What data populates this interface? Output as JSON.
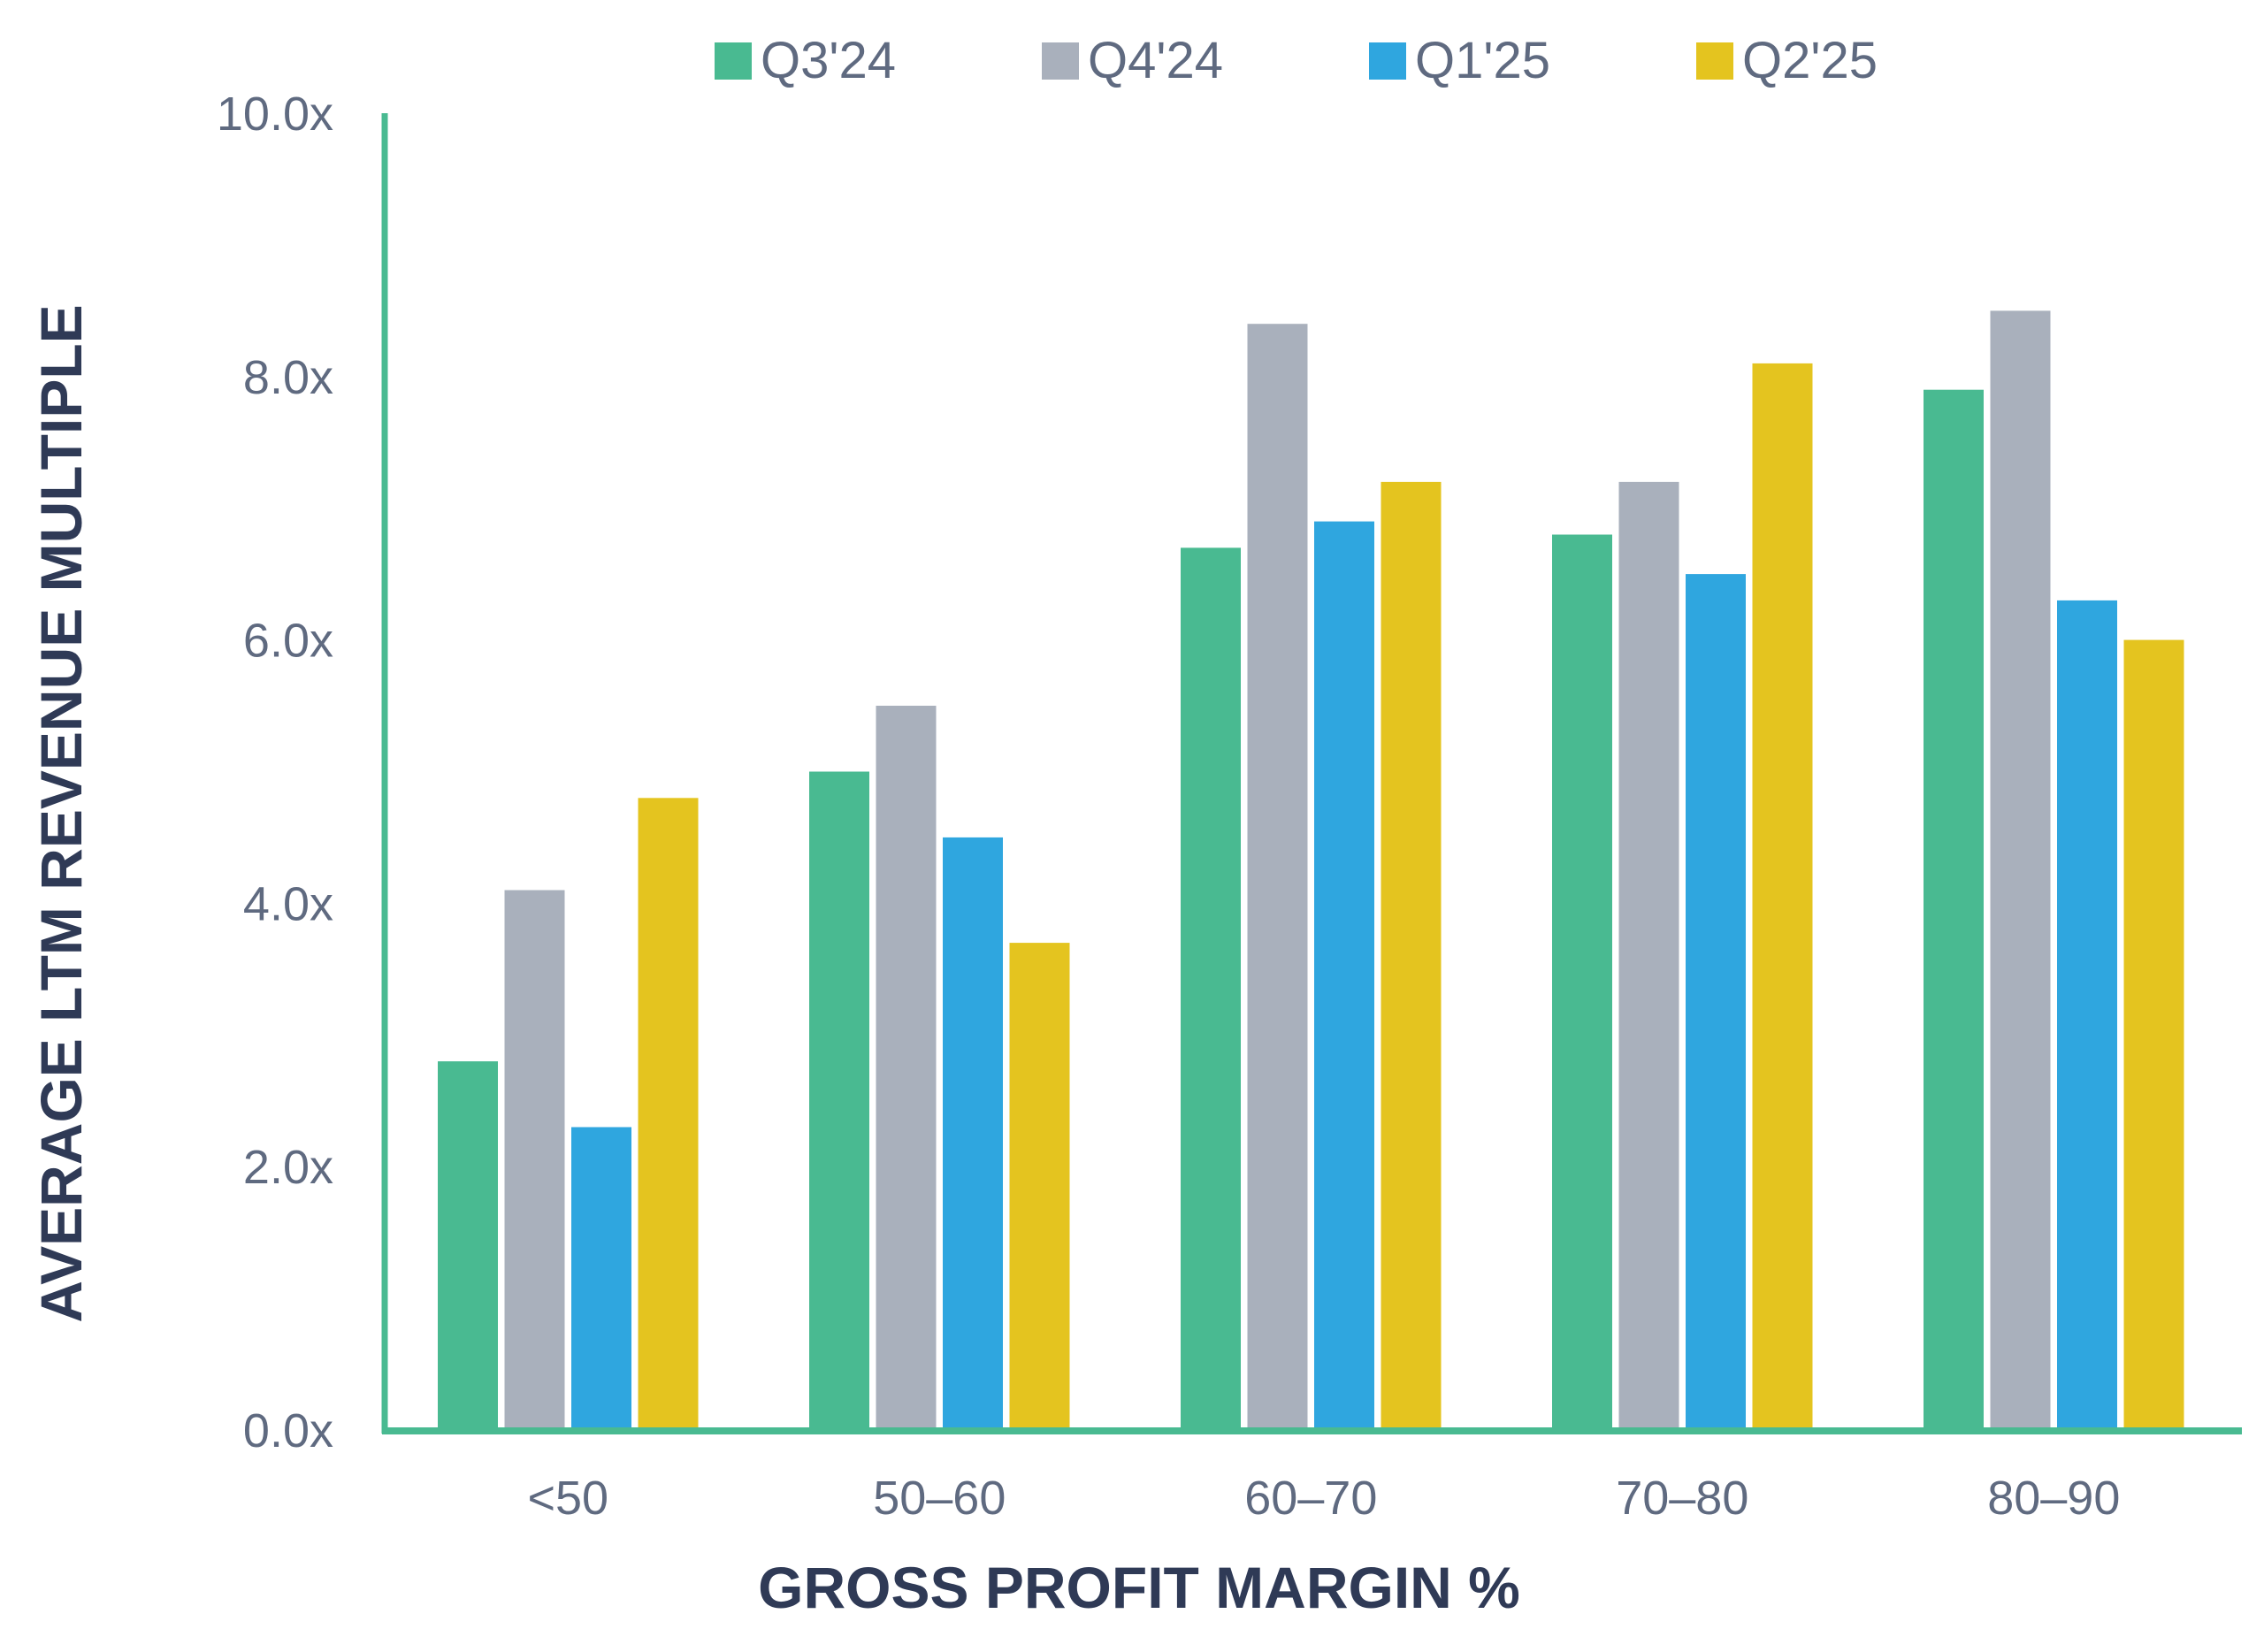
{
  "chart_data": {
    "type": "bar",
    "title": "",
    "xlabel": "GROSS PROFIT MARGIN %",
    "ylabel": "AVERAGE LTM REVENUE MULTIPLE",
    "categories": [
      "<50",
      "50–60",
      "60–70",
      "70–80",
      "80–90"
    ],
    "series": [
      {
        "name": "Q3'24",
        "color": "#49ba91",
        "values": [
          2.8,
          5.0,
          6.7,
          6.8,
          7.9
        ]
      },
      {
        "name": "Q4'24",
        "color": "#a9b0bc",
        "values": [
          4.1,
          5.5,
          8.4,
          7.2,
          8.5
        ]
      },
      {
        "name": "Q1'25",
        "color": "#2fa6df",
        "values": [
          2.3,
          4.5,
          6.9,
          6.5,
          6.3
        ]
      },
      {
        "name": "Q2'25",
        "color": "#e4c41f",
        "values": [
          4.8,
          3.7,
          7.2,
          8.1,
          6.0
        ]
      }
    ],
    "ylim": [
      0,
      10
    ],
    "yticks": [
      0,
      2,
      4,
      6,
      8,
      10
    ],
    "ytick_labels": [
      "0.0x",
      "2.0x",
      "4.0x",
      "6.0x",
      "8.0x",
      "10.0x"
    ],
    "grid": false,
    "legend_position": "top-center",
    "axis_color": "#49ba91"
  }
}
